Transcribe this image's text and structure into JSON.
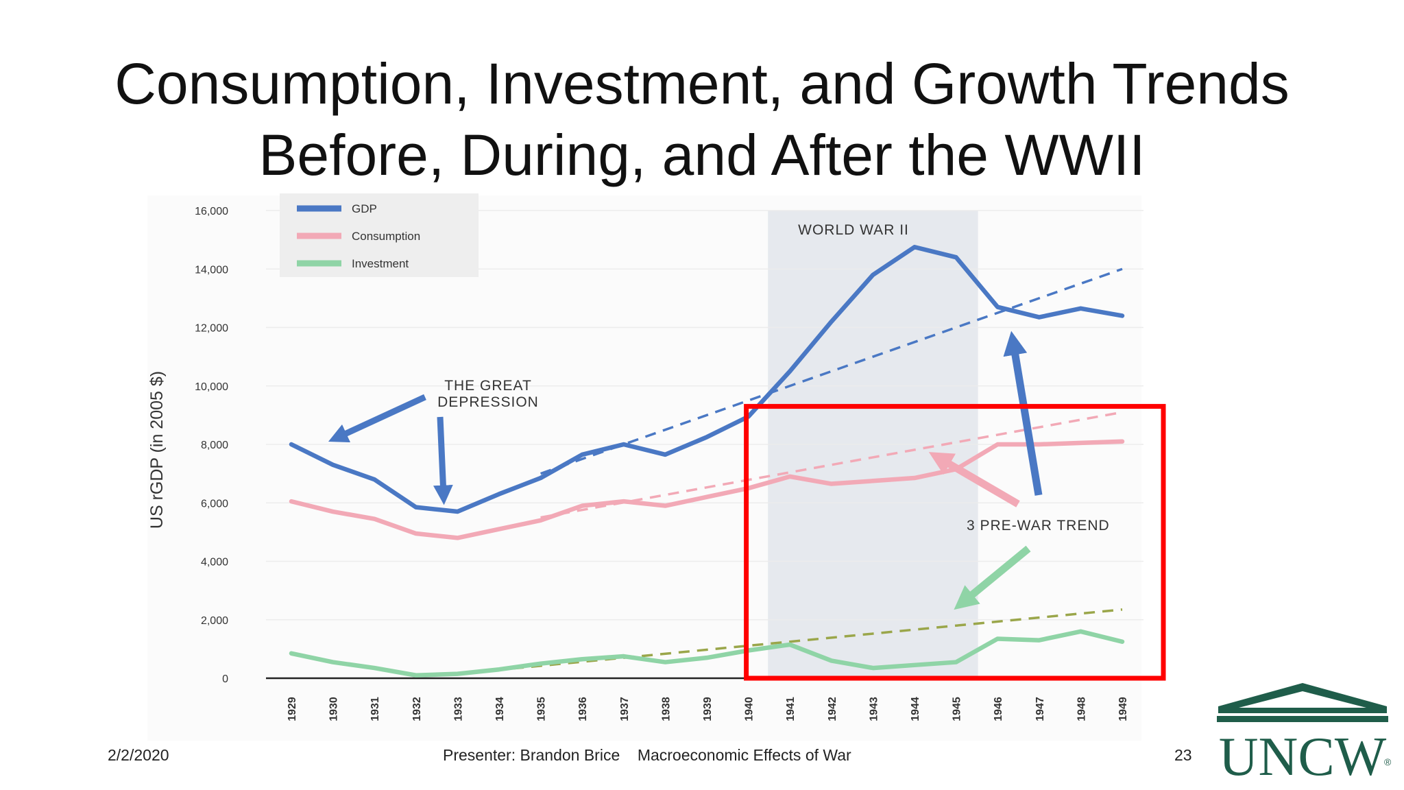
{
  "slide": {
    "title_line1": "Consumption, Investment, and Growth Trends",
    "title_line2": "Before, During, and After the WWII"
  },
  "footer": {
    "date": "2/2/2020",
    "presenter": "Presenter: Brandon Brice",
    "topic": "Macroeconomic Effects of War",
    "page": "23"
  },
  "logo": {
    "text": "UNCW",
    "color": "#1f5d4a"
  },
  "chart_data": {
    "type": "line",
    "ylabel": "US rGDP (in 2005 $)",
    "ylim": [
      0,
      16000
    ],
    "yticks": [
      0,
      2000,
      4000,
      6000,
      8000,
      10000,
      12000,
      14000,
      16000
    ],
    "ytick_labels": [
      "0",
      "2,000",
      "4,000",
      "6,000",
      "8,000",
      "10,000",
      "12,000",
      "14,000",
      "16,000"
    ],
    "x": [
      "1929",
      "1930",
      "1931",
      "1932",
      "1933",
      "1934",
      "1935",
      "1936",
      "1937",
      "1938",
      "1939",
      "1940",
      "1941",
      "1942",
      "1943",
      "1944",
      "1945",
      "1946",
      "1947",
      "1948",
      "1949"
    ],
    "legend_position": "top-left",
    "series": [
      {
        "name": "GDP",
        "color": "#4a78c4",
        "values": [
          8000,
          7300,
          6800,
          5850,
          5700,
          6300,
          6850,
          7650,
          8000,
          7650,
          8250,
          8950,
          10500,
          12200,
          13800,
          14750,
          14400,
          12700,
          12350,
          12650,
          12400
        ]
      },
      {
        "name": "Consumption",
        "color": "#f2a9b6",
        "values": [
          6050,
          5700,
          5450,
          4950,
          4800,
          5100,
          5400,
          5900,
          6050,
          5900,
          6200,
          6500,
          6900,
          6650,
          6750,
          6850,
          7150,
          8000,
          8000,
          8050,
          8100
        ]
      },
      {
        "name": "Investment",
        "color": "#8fd4a6",
        "values": [
          850,
          550,
          350,
          100,
          150,
          300,
          500,
          650,
          750,
          550,
          700,
          950,
          1150,
          600,
          350,
          450,
          550,
          1350,
          1300,
          1600,
          1250
        ]
      }
    ],
    "trend_lines": [
      {
        "series": "GDP",
        "color": "#4a78c4",
        "from": [
          "1935",
          7000
        ],
        "to": [
          "1949",
          14000
        ]
      },
      {
        "series": "Consumption",
        "color": "#f2a9b6",
        "from": [
          "1935",
          5500
        ],
        "to": [
          "1949",
          9100
        ]
      },
      {
        "series": "Investment",
        "color": "#9aa64a",
        "from": [
          "1933",
          150
        ],
        "to": [
          "1949",
          2350
        ]
      }
    ],
    "shaded_region": {
      "from": "1941",
      "to": "1945",
      "label": "WORLD WAR II",
      "color": "#e6e9ee"
    },
    "annotations": [
      {
        "label_line1": "THE GREAT",
        "label_line2": "DEPRESSION"
      },
      {
        "label": "3 PRE-WAR TREND"
      }
    ],
    "highlight_box": {
      "from_year": "1940",
      "to_x": "after 1949",
      "from_value": 0,
      "to_value": 9300,
      "color": "#ff0000"
    }
  }
}
